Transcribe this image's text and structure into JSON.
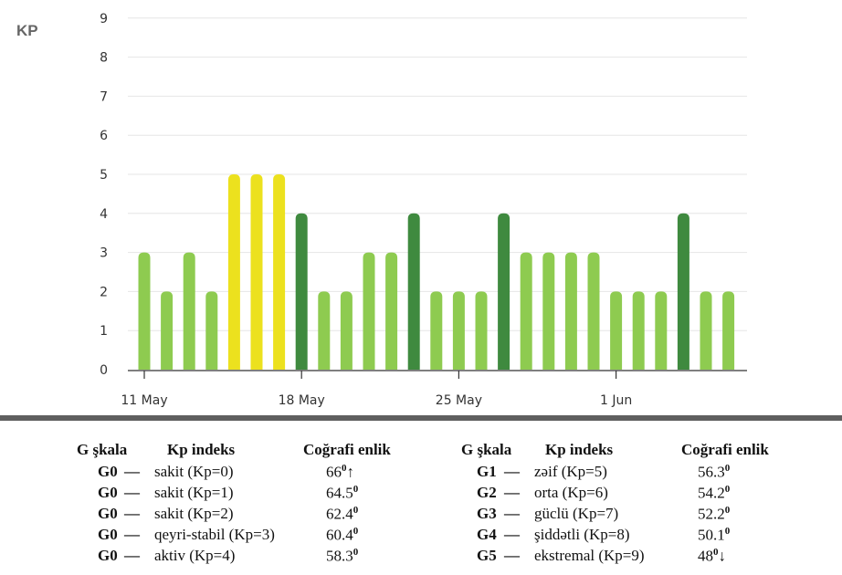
{
  "chart_data": {
    "type": "bar",
    "ylabel": "KP",
    "ylim": [
      0,
      9
    ],
    "yticks": [
      0,
      1,
      2,
      3,
      4,
      5,
      6,
      7,
      8,
      9
    ],
    "xticks": [
      "11 May",
      "18 May",
      "25 May",
      "1 Jun"
    ],
    "grid": true,
    "categories": [
      "11 May",
      "12 May",
      "13 May",
      "14 May",
      "15 May",
      "16 May",
      "17 May",
      "18 May",
      "19 May",
      "20 May",
      "21 May",
      "22 May",
      "23 May",
      "24 May",
      "25 May",
      "26 May",
      "27 May",
      "28 May",
      "29 May",
      "30 May",
      "31 May",
      "1 Jun",
      "2 Jun",
      "3 Jun",
      "4 Jun",
      "5 Jun",
      "6 Jun"
    ],
    "values": [
      3,
      2,
      3,
      2,
      5,
      5,
      5,
      4,
      2,
      2,
      3,
      3,
      4,
      2,
      2,
      2,
      4,
      3,
      3,
      3,
      3,
      2,
      2,
      2,
      4,
      2,
      2
    ],
    "colors": {
      "quiet": "#8ecb50",
      "active": "#3f8a3f",
      "storm": "#ece11e"
    }
  },
  "legend": {
    "headers": {
      "scale": "G şkala",
      "index": "Kp indeks",
      "lat": "Coğrafi enlik"
    },
    "left": [
      {
        "level": "G0",
        "desc": "sakit (Kp=0)",
        "lat": "66",
        "arrow": "↑"
      },
      {
        "level": "G0",
        "desc": "sakit (Kp=1)",
        "lat": "64.5",
        "arrow": ""
      },
      {
        "level": "G0",
        "desc": "sakit (Kp=2)",
        "lat": "62.4",
        "arrow": ""
      },
      {
        "level": "G0",
        "desc": "qeyri-stabil (Kp=3)",
        "lat": "60.4",
        "arrow": ""
      },
      {
        "level": "G0",
        "desc": "aktiv (Kp=4)",
        "lat": "58.3",
        "arrow": ""
      }
    ],
    "right": [
      {
        "level": "G1",
        "desc": "zəif (Kp=5)",
        "lat": "56.3",
        "arrow": ""
      },
      {
        "level": "G2",
        "desc": "orta (Kp=6)",
        "lat": "54.2",
        "arrow": ""
      },
      {
        "level": "G3",
        "desc": "güclü (Kp=7)",
        "lat": "52.2",
        "arrow": ""
      },
      {
        "level": "G4",
        "desc": "şiddətli (Kp=8)",
        "lat": "50.1",
        "arrow": ""
      },
      {
        "level": "G5",
        "desc": "ekstremal (Kp=9)",
        "lat": "48",
        "arrow": "↓"
      }
    ],
    "dash": "—",
    "degree": "0"
  }
}
